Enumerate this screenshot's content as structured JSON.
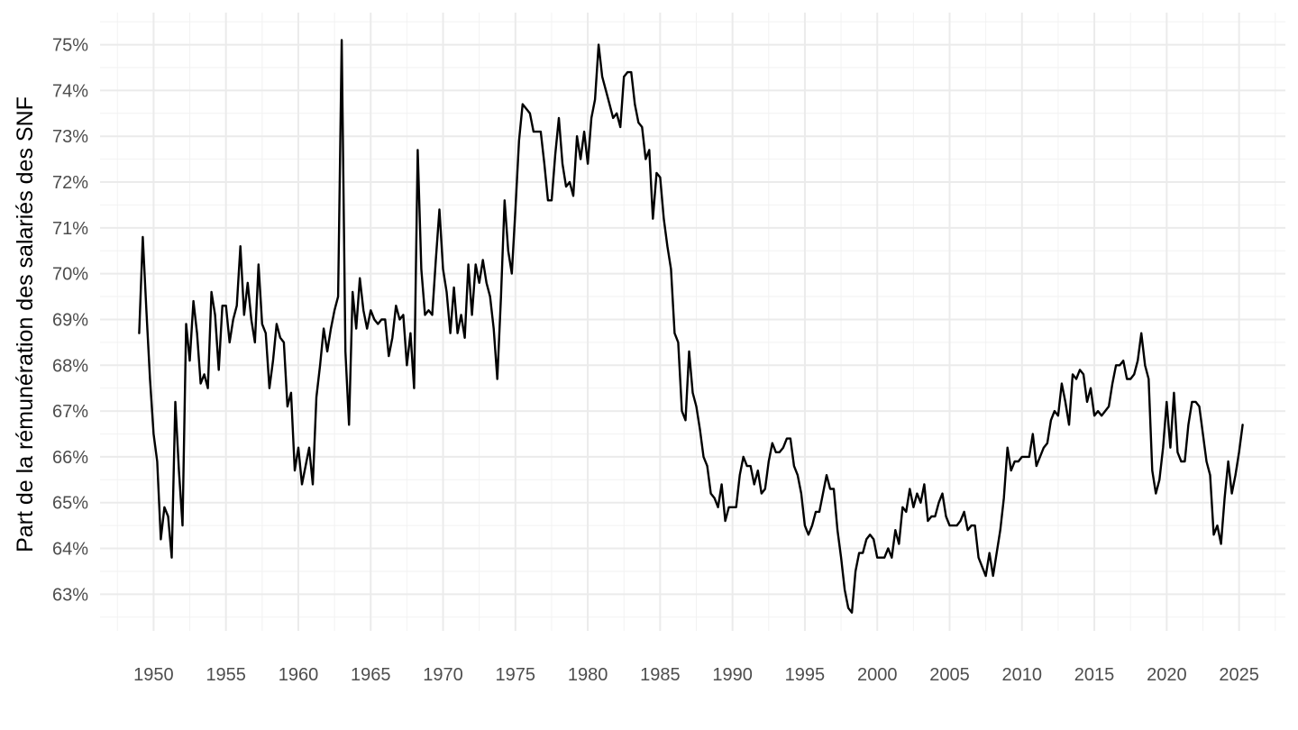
{
  "chart_data": {
    "type": "line",
    "title": "",
    "xlabel": "",
    "ylabel": "Part de la rémunération des salariés des SNF",
    "y_unit": "%",
    "xlim": [
      1946.3,
      2028.2
    ],
    "ylim": [
      62.2,
      75.7
    ],
    "x_ticks": [
      1950,
      1955,
      1960,
      1965,
      1970,
      1975,
      1980,
      1985,
      1990,
      1995,
      2000,
      2005,
      2010,
      2015,
      2020,
      2025
    ],
    "y_ticks": [
      63,
      64,
      65,
      66,
      67,
      68,
      69,
      70,
      71,
      72,
      73,
      74,
      75
    ],
    "y_tick_labels": [
      "63%",
      "64%",
      "65%",
      "66%",
      "67%",
      "68%",
      "69%",
      "70%",
      "71%",
      "72%",
      "73%",
      "74%",
      "75%"
    ],
    "grid": true,
    "legend": "none",
    "line_color": "#000000",
    "series": [
      {
        "x": [
          1949.0,
          1949.25,
          1949.5,
          1949.75,
          1950.0,
          1950.25,
          1950.5,
          1950.75,
          1951.0,
          1951.25,
          1951.5,
          1951.75,
          1952.0,
          1952.25,
          1952.5,
          1952.75,
          1953.0,
          1953.25,
          1953.5,
          1953.75,
          1954.0,
          1954.25,
          1954.5,
          1954.75,
          1955.0,
          1955.25,
          1955.5,
          1955.75,
          1956.0,
          1956.25,
          1956.5,
          1956.75,
          1957.0,
          1957.25,
          1957.5,
          1957.75,
          1958.0,
          1958.25,
          1958.5,
          1958.75,
          1959.0,
          1959.25,
          1959.5,
          1959.75,
          1960.0,
          1960.25,
          1960.5,
          1960.75,
          1961.0,
          1961.25,
          1961.5,
          1961.75,
          1962.0,
          1962.25,
          1962.5,
          1962.75,
          1963.0,
          1963.25,
          1963.5,
          1963.75,
          1964.0,
          1964.25,
          1964.5,
          1964.75,
          1965.0,
          1965.25,
          1965.5,
          1965.75,
          1966.0,
          1966.25,
          1966.5,
          1966.75,
          1967.0,
          1967.25,
          1967.5,
          1967.75,
          1968.0,
          1968.25,
          1968.5,
          1968.75,
          1969.0,
          1969.25,
          1969.5,
          1969.75,
          1970.0,
          1970.25,
          1970.5,
          1970.75,
          1971.0,
          1971.25,
          1971.5,
          1971.75,
          1972.0,
          1972.25,
          1972.5,
          1972.75,
          1973.0,
          1973.25,
          1973.5,
          1973.75,
          1974.0,
          1974.25,
          1974.5,
          1974.75,
          1975.0,
          1975.25,
          1975.5,
          1975.75,
          1976.0,
          1976.25,
          1976.5,
          1976.75,
          1977.0,
          1977.25,
          1977.5,
          1977.75,
          1978.0,
          1978.25,
          1978.5,
          1978.75,
          1979.0,
          1979.25,
          1979.5,
          1979.75,
          1980.0,
          1980.25,
          1980.5,
          1980.75,
          1981.0,
          1981.25,
          1981.5,
          1981.75,
          1982.0,
          1982.25,
          1982.5,
          1982.75,
          1983.0,
          1983.25,
          1983.5,
          1983.75,
          1984.0,
          1984.25,
          1984.5,
          1984.75,
          1985.0,
          1985.25,
          1985.5,
          1985.75,
          1986.0,
          1986.25,
          1986.5,
          1986.75,
          1987.0,
          1987.25,
          1987.5,
          1987.75,
          1988.0,
          1988.25,
          1988.5,
          1988.75,
          1989.0,
          1989.25,
          1989.5,
          1989.75,
          1990.0,
          1990.25,
          1990.5,
          1990.75,
          1991.0,
          1991.25,
          1991.5,
          1991.75,
          1992.0,
          1992.25,
          1992.5,
          1992.75,
          1993.0,
          1993.25,
          1993.5,
          1993.75,
          1994.0,
          1994.25,
          1994.5,
          1994.75,
          1995.0,
          1995.25,
          1995.5,
          1995.75,
          1996.0,
          1996.25,
          1996.5,
          1996.75,
          1997.0,
          1997.25,
          1997.5,
          1997.75,
          1998.0,
          1998.25,
          1998.5,
          1998.75,
          1999.0,
          1999.25,
          1999.5,
          1999.75,
          2000.0,
          2000.25,
          2000.5,
          2000.75,
          2001.0,
          2001.25,
          2001.5,
          2001.75,
          2002.0,
          2002.25,
          2002.5,
          2002.75,
          2003.0,
          2003.25,
          2003.5,
          2003.75,
          2004.0,
          2004.25,
          2004.5,
          2004.75,
          2005.0,
          2005.25,
          2005.5,
          2005.75,
          2006.0,
          2006.25,
          2006.5,
          2006.75,
          2007.0,
          2007.25,
          2007.5,
          2007.75,
          2008.0,
          2008.25,
          2008.5,
          2008.75,
          2009.0,
          2009.25,
          2009.5,
          2009.75,
          2010.0,
          2010.25,
          2010.5,
          2010.75,
          2011.0,
          2011.25,
          2011.5,
          2011.75,
          2012.0,
          2012.25,
          2012.5,
          2012.75,
          2013.0,
          2013.25,
          2013.5,
          2013.75,
          2014.0,
          2014.25,
          2014.5,
          2014.75,
          2015.0,
          2015.25,
          2015.5,
          2015.75,
          2016.0,
          2016.25,
          2016.5,
          2016.75,
          2017.0,
          2017.25,
          2017.5,
          2017.75,
          2018.0,
          2018.25,
          2018.5,
          2018.75,
          2019.0,
          2019.25,
          2019.5,
          2019.75,
          2020.0,
          2020.25,
          2020.5,
          2020.75,
          2021.0,
          2021.25,
          2021.5,
          2021.75,
          2022.0,
          2022.25,
          2022.5,
          2022.75,
          2023.0,
          2023.25,
          2023.5,
          2023.75,
          2024.0,
          2024.25,
          2024.5,
          2024.75,
          2025.0,
          2025.25
        ],
        "values": [
          68.7,
          70.8,
          69.2,
          67.7,
          66.5,
          65.9,
          64.2,
          64.9,
          64.7,
          63.8,
          67.2,
          65.7,
          64.5,
          68.9,
          68.1,
          69.4,
          68.7,
          67.6,
          67.8,
          67.5,
          69.6,
          69.1,
          67.9,
          69.3,
          69.3,
          68.5,
          69.0,
          69.3,
          70.6,
          69.1,
          69.8,
          69.0,
          68.5,
          70.2,
          68.9,
          68.7,
          67.5,
          68.1,
          68.9,
          68.6,
          68.5,
          67.1,
          67.4,
          65.7,
          66.2,
          65.4,
          65.8,
          66.2,
          65.4,
          67.3,
          68.0,
          68.8,
          68.3,
          68.8,
          69.2,
          69.5,
          75.1,
          68.3,
          66.7,
          69.6,
          68.8,
          69.9,
          69.2,
          68.8,
          69.2,
          69.0,
          68.9,
          69.0,
          69.0,
          68.2,
          68.6,
          69.3,
          69.0,
          69.1,
          68.0,
          68.7,
          67.5,
          72.7,
          70.1,
          69.1,
          69.2,
          69.1,
          70.3,
          71.4,
          70.1,
          69.6,
          68.7,
          69.7,
          68.7,
          69.1,
          68.6,
          70.2,
          69.1,
          70.2,
          69.8,
          70.3,
          69.8,
          69.5,
          68.8,
          67.7,
          69.5,
          71.6,
          70.5,
          70.0,
          71.4,
          72.9,
          73.7,
          73.6,
          73.5,
          73.1,
          73.1,
          73.1,
          72.4,
          71.6,
          71.6,
          72.6,
          73.4,
          72.4,
          71.9,
          72.0,
          71.7,
          73.0,
          72.5,
          73.1,
          72.4,
          73.4,
          73.8,
          75.0,
          74.3,
          74.0,
          73.7,
          73.4,
          73.5,
          73.2,
          74.3,
          74.4,
          74.4,
          73.7,
          73.3,
          73.2,
          72.5,
          72.7,
          71.2,
          72.2,
          72.1,
          71.2,
          70.6,
          70.1,
          68.7,
          68.5,
          67.0,
          66.8,
          68.3,
          67.4,
          67.1,
          66.6,
          66.0,
          65.8,
          65.2,
          65.1,
          64.9,
          65.4,
          64.6,
          64.9,
          64.9,
          64.9,
          65.6,
          66.0,
          65.8,
          65.8,
          65.4,
          65.7,
          65.2,
          65.3,
          65.9,
          66.3,
          66.1,
          66.1,
          66.2,
          66.4,
          66.4,
          65.8,
          65.6,
          65.2,
          64.5,
          64.3,
          64.5,
          64.8,
          64.8,
          65.2,
          65.6,
          65.3,
          65.3,
          64.4,
          63.8,
          63.1,
          62.7,
          62.6,
          63.5,
          63.9,
          63.9,
          64.2,
          64.3,
          64.2,
          63.8,
          63.8,
          63.8,
          64.0,
          63.8,
          64.4,
          64.1,
          64.9,
          64.8,
          65.3,
          64.9,
          65.2,
          65.0,
          65.4,
          64.6,
          64.7,
          64.7,
          65.0,
          65.2,
          64.7,
          64.5,
          64.5,
          64.5,
          64.6,
          64.8,
          64.4,
          64.5,
          64.5,
          63.8,
          63.6,
          63.4,
          63.9,
          63.4,
          63.9,
          64.4,
          65.1,
          66.2,
          65.7,
          65.9,
          65.9,
          66.0,
          66.0,
          66.0,
          66.5,
          65.8,
          66.0,
          66.2,
          66.3,
          66.8,
          67.0,
          66.9,
          67.6,
          67.2,
          66.7,
          67.8,
          67.7,
          67.9,
          67.8,
          67.2,
          67.5,
          66.9,
          67.0,
          66.9,
          67.0,
          67.1,
          67.6,
          68.0,
          68.0,
          68.1,
          67.7,
          67.7,
          67.8,
          68.1,
          68.7,
          68.0,
          67.7,
          65.7,
          65.2,
          65.5,
          66.2,
          67.2,
          66.2,
          67.4,
          66.1,
          65.9,
          65.9,
          66.7,
          67.2,
          67.2,
          67.1,
          66.5,
          65.9,
          65.6,
          64.3,
          64.5,
          64.1,
          65.1,
          65.9,
          65.2,
          65.6,
          66.1,
          66.7
        ]
      }
    ]
  }
}
